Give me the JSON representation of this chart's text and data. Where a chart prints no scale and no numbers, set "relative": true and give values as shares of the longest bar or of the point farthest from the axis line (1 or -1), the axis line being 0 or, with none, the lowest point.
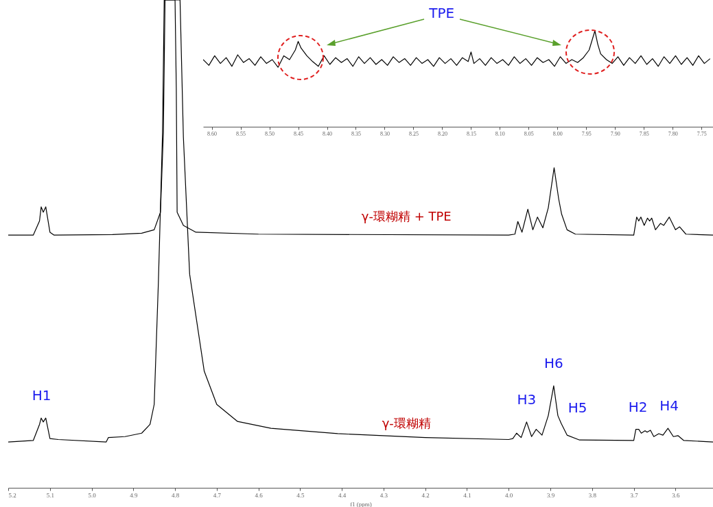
{
  "chart_data": [
    {
      "type": "line",
      "relative": true,
      "xlabel": "f1 (ppm)",
      "xlim": [
        5.2,
        3.51
      ],
      "xticks": [
        5.2,
        5.1,
        {
          "value": 5,
          "label": "5.0"
        },
        4.9,
        4.8,
        4.7,
        4.6,
        4.5,
        4.4,
        4.3,
        4.2,
        4.1,
        {
          "value": 4,
          "label": "4.0"
        },
        3.9,
        3.8,
        3.7,
        3.6
      ],
      "line_style": "solid",
      "legend": false,
      "grid": false,
      "series": [
        {
          "name": "γ-環糊精 + TPE",
          "color": "#000000",
          "x": [
            5.2,
            5.14,
            5.125,
            5.121,
            5.116,
            5.11,
            5.1,
            5.09,
            4.95,
            4.88,
            4.85,
            4.835,
            4.828,
            4.824,
            4.8,
            4.797,
            4.795,
            4.78,
            4.75,
            4.6,
            4.0,
            3.985,
            3.978,
            3.968,
            3.954,
            3.942,
            3.931,
            3.918,
            3.905,
            3.891,
            3.88,
            3.873,
            3.86,
            3.84,
            3.7,
            3.693,
            3.688,
            3.683,
            3.675,
            3.667,
            3.662,
            3.657,
            3.648,
            3.636,
            3.628,
            3.615,
            3.6,
            3.59,
            3.575,
            3.51
          ],
          "values": [
            0.518,
            0.518,
            0.547,
            0.576,
            0.565,
            0.576,
            0.524,
            0.518,
            0.519,
            0.522,
            0.529,
            0.565,
            0.728,
            1,
            1,
            0.819,
            0.565,
            0.538,
            0.524,
            0.52,
            0.518,
            0.52,
            0.546,
            0.524,
            0.571,
            0.529,
            0.555,
            0.533,
            0.574,
            0.656,
            0.592,
            0.561,
            0.529,
            0.52,
            0.518,
            0.555,
            0.547,
            0.555,
            0.538,
            0.553,
            0.547,
            0.553,
            0.529,
            0.542,
            0.538,
            0.555,
            0.529,
            0.535,
            0.52,
            0.518
          ]
        },
        {
          "name": "γ-環糊精",
          "color": "#000000",
          "x": [
            5.2,
            5.14,
            5.125,
            5.121,
            5.116,
            5.11,
            5.1,
            5.08,
            4.965,
            4.96,
            4.92,
            4.88,
            4.86,
            4.85,
            4.84,
            4.83,
            4.826,
            4.788,
            4.78,
            4.765,
            4.73,
            4.7,
            4.65,
            4.57,
            4.41,
            4.2,
            4.0,
            3.99,
            3.981,
            3.97,
            3.957,
            3.945,
            3.934,
            3.92,
            3.905,
            3.892,
            3.882,
            3.874,
            3.86,
            3.83,
            3.7,
            3.695,
            3.688,
            3.682,
            3.673,
            3.668,
            3.66,
            3.652,
            3.64,
            3.63,
            3.618,
            3.605,
            3.594,
            3.58,
            3.51
          ],
          "values": [
            0.094,
            0.097,
            0.13,
            0.143,
            0.135,
            0.143,
            0.101,
            0.099,
            0.094,
            0.103,
            0.105,
            0.112,
            0.13,
            0.171,
            0.42,
            0.728,
            1,
            1,
            0.719,
            0.438,
            0.239,
            0.171,
            0.136,
            0.122,
            0.111,
            0.103,
            0.099,
            0.101,
            0.112,
            0.103,
            0.135,
            0.105,
            0.12,
            0.108,
            0.148,
            0.209,
            0.148,
            0.132,
            0.108,
            0.098,
            0.097,
            0.12,
            0.12,
            0.112,
            0.117,
            0.114,
            0.118,
            0.105,
            0.111,
            0.108,
            0.122,
            0.105,
            0.107,
            0.097,
            0.094
          ]
        }
      ],
      "annotations": [
        {
          "text": "H1",
          "x": 5.12,
          "y": 0.143
        },
        {
          "text": "H3",
          "x": 3.957,
          "y": 0.135
        },
        {
          "text": "H6",
          "x": 3.892,
          "y": 0.209
        },
        {
          "text": "H5",
          "x": 3.874,
          "y": 0.132
        },
        {
          "text": "H2",
          "x": 3.69,
          "y": 0.12
        },
        {
          "text": "H4",
          "x": 3.615,
          "y": 0.122
        }
      ]
    },
    {
      "type": "line",
      "relative": true,
      "xlim": [
        8.615,
        7.73
      ],
      "xticks": [
        {
          "value": 8.6,
          "label": "8.60"
        },
        8.55,
        {
          "value": 8.5,
          "label": "8.50"
        },
        8.45,
        {
          "value": 8.4,
          "label": "8.40"
        },
        8.35,
        {
          "value": 8.3,
          "label": "8.30"
        },
        8.25,
        {
          "value": 8.2,
          "label": "8.20"
        },
        8.15,
        {
          "value": 8.1,
          "label": "8.10"
        },
        8.05,
        {
          "value": 8,
          "label": "8.00"
        },
        7.95,
        {
          "value": 7.9,
          "label": "7.90"
        },
        7.85,
        {
          "value": 7.8,
          "label": "7.80"
        },
        7.75
      ],
      "line_style": "solid",
      "legend": false,
      "grid": false,
      "series": [
        {
          "color": "#000000",
          "x": [
            8.615,
            8.605,
            8.595,
            8.585,
            8.575,
            8.565,
            8.555,
            8.545,
            8.535,
            8.525,
            8.515,
            8.505,
            8.495,
            8.485,
            8.475,
            8.465,
            8.455,
            8.45,
            8.445,
            8.435,
            8.425,
            8.415,
            8.405,
            8.395,
            8.385,
            8.375,
            8.365,
            8.355,
            8.345,
            8.335,
            8.325,
            8.315,
            8.305,
            8.295,
            8.285,
            8.275,
            8.265,
            8.255,
            8.245,
            8.235,
            8.225,
            8.215,
            8.205,
            8.195,
            8.185,
            8.175,
            8.165,
            8.155,
            8.15,
            8.145,
            8.135,
            8.125,
            8.115,
            8.105,
            8.095,
            8.085,
            8.075,
            8.065,
            8.055,
            8.045,
            8.035,
            8.025,
            8.015,
            8.005,
            7.995,
            7.985,
            7.975,
            7.965,
            7.955,
            7.945,
            7.935,
            7.93,
            7.925,
            7.915,
            7.905,
            7.895,
            7.885,
            7.875,
            7.865,
            7.855,
            7.845,
            7.835,
            7.825,
            7.815,
            7.805,
            7.795,
            7.785,
            7.775,
            7.765,
            7.755,
            7.745,
            7.735
          ],
          "values": [
            0.7,
            0.64,
            0.74,
            0.66,
            0.72,
            0.63,
            0.75,
            0.67,
            0.71,
            0.64,
            0.73,
            0.66,
            0.7,
            0.62,
            0.74,
            0.7,
            0.8,
            0.89,
            0.82,
            0.74,
            0.68,
            0.63,
            0.74,
            0.65,
            0.72,
            0.67,
            0.71,
            0.63,
            0.73,
            0.66,
            0.72,
            0.65,
            0.7,
            0.64,
            0.73,
            0.67,
            0.71,
            0.64,
            0.72,
            0.66,
            0.7,
            0.63,
            0.72,
            0.66,
            0.71,
            0.64,
            0.72,
            0.68,
            0.78,
            0.66,
            0.71,
            0.64,
            0.72,
            0.66,
            0.7,
            0.64,
            0.73,
            0.66,
            0.71,
            0.64,
            0.72,
            0.67,
            0.7,
            0.63,
            0.73,
            0.66,
            0.7,
            0.67,
            0.72,
            0.8,
            1,
            0.86,
            0.76,
            0.7,
            0.66,
            0.73,
            0.64,
            0.72,
            0.66,
            0.74,
            0.65,
            0.71,
            0.63,
            0.73,
            0.66,
            0.74,
            0.65,
            0.72,
            0.64,
            0.74,
            0.66,
            0.71
          ]
        }
      ],
      "annotations": [
        "TPE"
      ]
    }
  ]
}
